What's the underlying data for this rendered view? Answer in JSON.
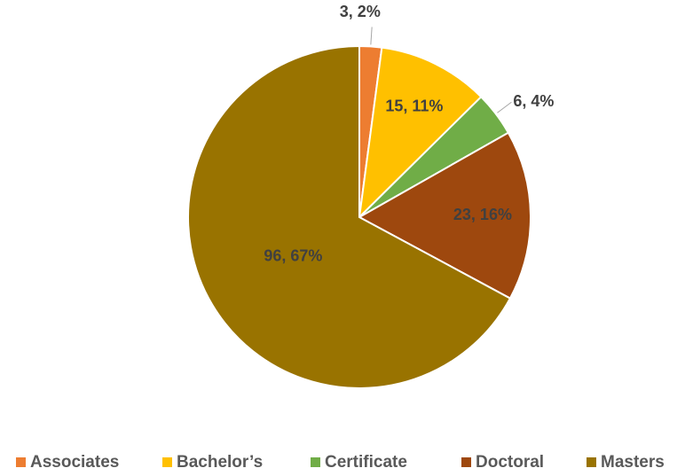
{
  "chart_data": {
    "type": "pie",
    "categories": [
      "Associates",
      "Bachelor’s",
      "Certificate",
      "Doctoral",
      "Masters"
    ],
    "values": [
      3,
      15,
      6,
      23,
      96
    ],
    "value_labels": [
      "3, 2%",
      "15, 11%",
      "6, 4%",
      "23, 16%",
      "96, 67%"
    ],
    "colors": [
      "#ed7d31",
      "#ffc000",
      "#70ad47",
      "#9e480e",
      "#997300"
    ],
    "legend": "bottom"
  }
}
